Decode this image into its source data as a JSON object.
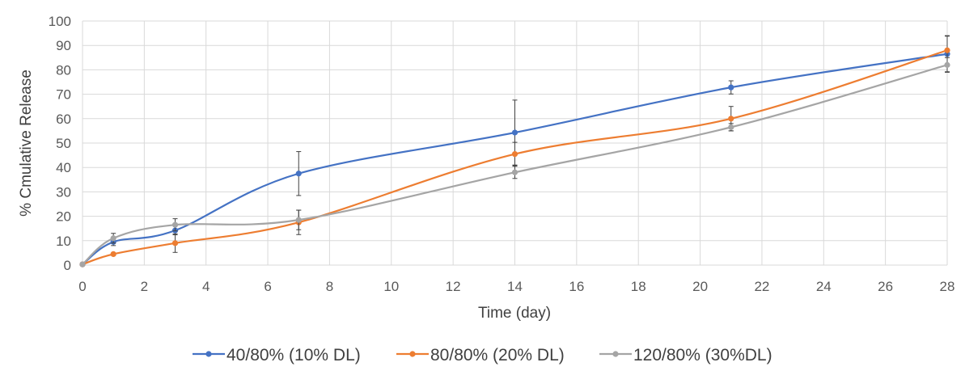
{
  "chart_data": {
    "type": "line",
    "title": "",
    "xlabel": "Time (day)",
    "ylabel": "% Cmulative Release",
    "xlim": [
      0,
      28
    ],
    "ylim": [
      0,
      100
    ],
    "x_ticks": [
      "0",
      "2",
      "4",
      "6",
      "8",
      "10",
      "12",
      "14",
      "16",
      "18",
      "20",
      "22",
      "24",
      "26",
      "28"
    ],
    "y_ticks": [
      "0",
      "10",
      "20",
      "30",
      "40",
      "50",
      "60",
      "70",
      "80",
      "90",
      "100"
    ],
    "grid": true,
    "smooth": true,
    "legend_position": "bottom",
    "series": [
      {
        "name": "40/80% (10% DL)",
        "color": "#4472c4",
        "x": [
          0,
          1,
          3,
          7,
          14,
          21,
          28
        ],
        "y": [
          0.3,
          9.5,
          14.2,
          37.5,
          54.3,
          72.8,
          86.5
        ],
        "err": [
          0,
          1.5,
          1.8,
          9.0,
          13.3,
          2.7,
          7.3
        ]
      },
      {
        "name": "80/80% (20% DL)",
        "color": "#ed7d31",
        "x": [
          0,
          1,
          3,
          7,
          14,
          21,
          28
        ],
        "y": [
          0.3,
          4.5,
          9.0,
          17.5,
          45.5,
          60.0,
          88.0
        ],
        "err": [
          0,
          0.5,
          3.8,
          5.0,
          4.8,
          5.0,
          6.0
        ]
      },
      {
        "name": "120/80% (30%DL)",
        "color": "#a5a5a5",
        "x": [
          0,
          1,
          3,
          7,
          14,
          21,
          28
        ],
        "y": [
          0.3,
          11.0,
          16.5,
          18.5,
          38.0,
          56.5,
          82.0
        ],
        "err": [
          0,
          2.0,
          2.5,
          4.0,
          2.5,
          1.5,
          3.0
        ]
      }
    ]
  }
}
